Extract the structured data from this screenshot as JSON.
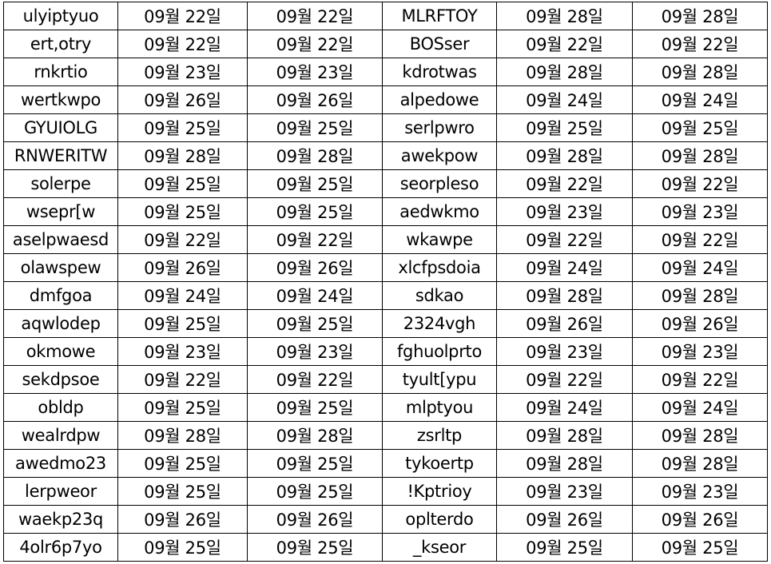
{
  "rows": [
    [
      "ulyiptyuo",
      "09월 22일",
      "09월 22일",
      "MLRFTOY",
      "09월 28일",
      "09월 28일"
    ],
    [
      "ert,otry",
      "09월 22일",
      "09월 22일",
      "BOSser",
      "09월 22일",
      "09월 22일"
    ],
    [
      "rnkrtio",
      "09월 23일",
      "09월 23일",
      "kdrotwas",
      "09월 28일",
      "09월 28일"
    ],
    [
      "wertkwpo",
      "09월 26일",
      "09월 26일",
      "alpedowe",
      "09월 24일",
      "09월 24일"
    ],
    [
      "GYUIOLG",
      "09월 25일",
      "09월 25일",
      "serlpwro",
      "09월 25일",
      "09월 25일"
    ],
    [
      "RNWERITW",
      "09월 28일",
      "09월 28일",
      "awekpow",
      "09월 28일",
      "09월 28일"
    ],
    [
      "solerpe",
      "09월 25일",
      "09월 25일",
      "seorpleso",
      "09월 22일",
      "09월 22일"
    ],
    [
      "wsepr[w",
      "09월 25일",
      "09월 25일",
      "aedwkmo",
      "09월 23일",
      "09월 23일"
    ],
    [
      "aselpwaesd",
      "09월 22일",
      "09월 22일",
      "wkawpe",
      "09월 22일",
      "09월 22일"
    ],
    [
      "olawspew",
      "09월 26일",
      "09월 26일",
      "xlcfpsdoia",
      "09월 24일",
      "09월 24일"
    ],
    [
      "dmfgoa",
      "09월 24일",
      "09월 24일",
      "sdkao",
      "09월 28일",
      "09월 28일"
    ],
    [
      "aqwlodep",
      "09월 25일",
      "09월 25일",
      "2324vgh",
      "09월 26일",
      "09월 26일"
    ],
    [
      "okmowe",
      "09월 23일",
      "09월 23일",
      "fghuolprto",
      "09월 23일",
      "09월 23일"
    ],
    [
      "sekdpsoe",
      "09월 22일",
      "09월 22일",
      "tyult[ypu",
      "09월 22일",
      "09월 22일"
    ],
    [
      "obldp",
      "09월 25일",
      "09월 25일",
      "mlptyou",
      "09월 24일",
      "09월 24일"
    ],
    [
      "wealrdpw",
      "09월 28일",
      "09월 28일",
      "zsrltp",
      "09월 28일",
      "09월 28일"
    ],
    [
      "awedmo23",
      "09월 25일",
      "09월 25일",
      "tykoertp",
      "09월 28일",
      "09월 28일"
    ],
    [
      "lerpweor",
      "09월 25일",
      "09월 25일",
      "!Kptrioy",
      "09월 23일",
      "09월 23일"
    ],
    [
      "waekp23q",
      "09월 26일",
      "09월 26일",
      "oplterdo",
      "09월 26일",
      "09월 26일"
    ],
    [
      "4olr6p7yo",
      "09월 25일",
      "09월 25일",
      "_kseor",
      "09월 25일",
      "09월 25일"
    ]
  ]
}
